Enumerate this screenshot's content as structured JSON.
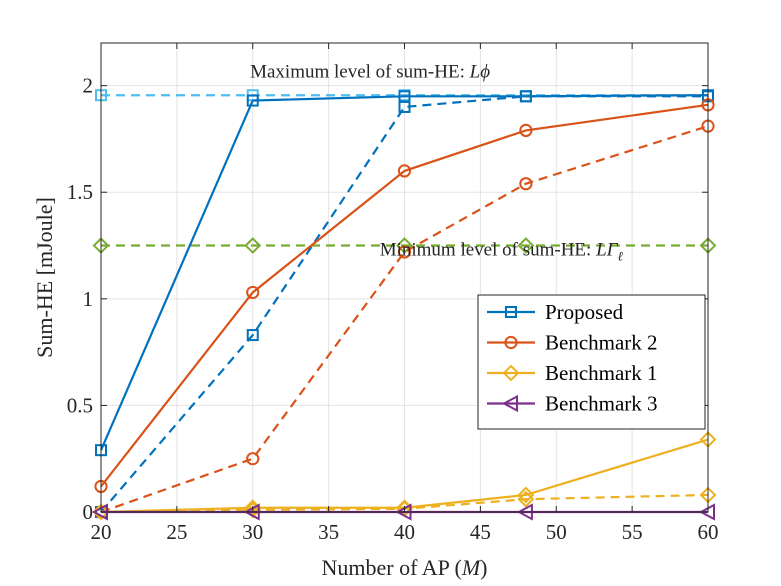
{
  "chart_data": {
    "type": "line",
    "title": "",
    "xlabel": "Number of AP (",
    "xlabel_var": "M",
    "xlabel_end": ")",
    "ylabel": "Sum-HE [mJoule]",
    "xlim": [
      20,
      60
    ],
    "ylim": [
      0,
      2.2
    ],
    "xticks": [
      20,
      25,
      30,
      35,
      40,
      45,
      50,
      55,
      60
    ],
    "yticks": [
      0,
      0.5,
      1,
      1.5,
      2
    ],
    "ytick_labels": [
      "0",
      "0.5",
      "1",
      "1.5",
      "2"
    ],
    "grid": true,
    "legend_position": "center-right",
    "annotations": [
      {
        "text": "Maximum level of sum-HE: ",
        "math": "Lϕ",
        "x": 20.6,
        "y": 2.07
      },
      {
        "text": "Minimum level of sum-HE: ",
        "math": "LΓ",
        "sub": "ℓ",
        "x": 38.3,
        "y": 1.1
      }
    ],
    "series": [
      {
        "name": "Proposed",
        "legend": true,
        "color": "#0072BD",
        "dash": "solid",
        "marker": "square",
        "x": [
          20,
          30,
          40,
          48,
          60
        ],
        "values": [
          0.29,
          1.93,
          1.95,
          1.95,
          1.955
        ]
      },
      {
        "name": "Proposed (dashed)",
        "legend": false,
        "color": "#0072BD",
        "dash": "dashed",
        "marker": "square",
        "x": [
          20,
          30,
          40,
          48,
          60
        ],
        "values": [
          0.0,
          0.83,
          1.9,
          1.95,
          1.95
        ]
      },
      {
        "name": "Benchmark 2",
        "legend": true,
        "color": "#D95319",
        "dash": "solid",
        "marker": "circle",
        "x": [
          20,
          30,
          40,
          48,
          60
        ],
        "values": [
          0.12,
          1.03,
          1.6,
          1.79,
          1.91
        ]
      },
      {
        "name": "Benchmark 2 (dashed)",
        "legend": false,
        "color": "#D95319",
        "dash": "dashed",
        "marker": "circle",
        "x": [
          20,
          30,
          40,
          48,
          60
        ],
        "values": [
          0.0,
          0.25,
          1.22,
          1.54,
          1.81
        ]
      },
      {
        "name": "Benchmark 1",
        "legend": true,
        "color": "#EDB120",
        "dash": "solid",
        "marker": "diamond",
        "x": [
          20,
          30,
          40,
          48,
          60
        ],
        "values": [
          0.0,
          0.02,
          0.02,
          0.08,
          0.34
        ]
      },
      {
        "name": "Benchmark 1 (dashed)",
        "legend": false,
        "color": "#EDB120",
        "dash": "dashed",
        "marker": "diamond",
        "x": [
          20,
          30,
          40,
          48,
          60
        ],
        "values": [
          0.0,
          0.01,
          0.015,
          0.06,
          0.08
        ]
      },
      {
        "name": "Benchmark 3",
        "legend": true,
        "color": "#7E2F8E",
        "dash": "solid",
        "marker": "triangle-left",
        "x": [
          20,
          30,
          40,
          48,
          60
        ],
        "values": [
          0.0,
          0.0,
          0.0,
          0.0,
          0.0
        ]
      },
      {
        "name": "Maximum level",
        "legend": false,
        "color": "#4DBEEE",
        "dash": "dashed",
        "marker": "square",
        "x": [
          20,
          30,
          40
        ],
        "values": [
          1.955,
          1.955,
          1.955
        ]
      },
      {
        "name": "Minimum level",
        "legend": false,
        "color": "#77AC30",
        "dash": "dashed",
        "marker": "diamond",
        "x": [
          20,
          30,
          40,
          48,
          60
        ],
        "values": [
          1.25,
          1.25,
          1.25,
          1.25,
          1.25
        ]
      }
    ]
  }
}
